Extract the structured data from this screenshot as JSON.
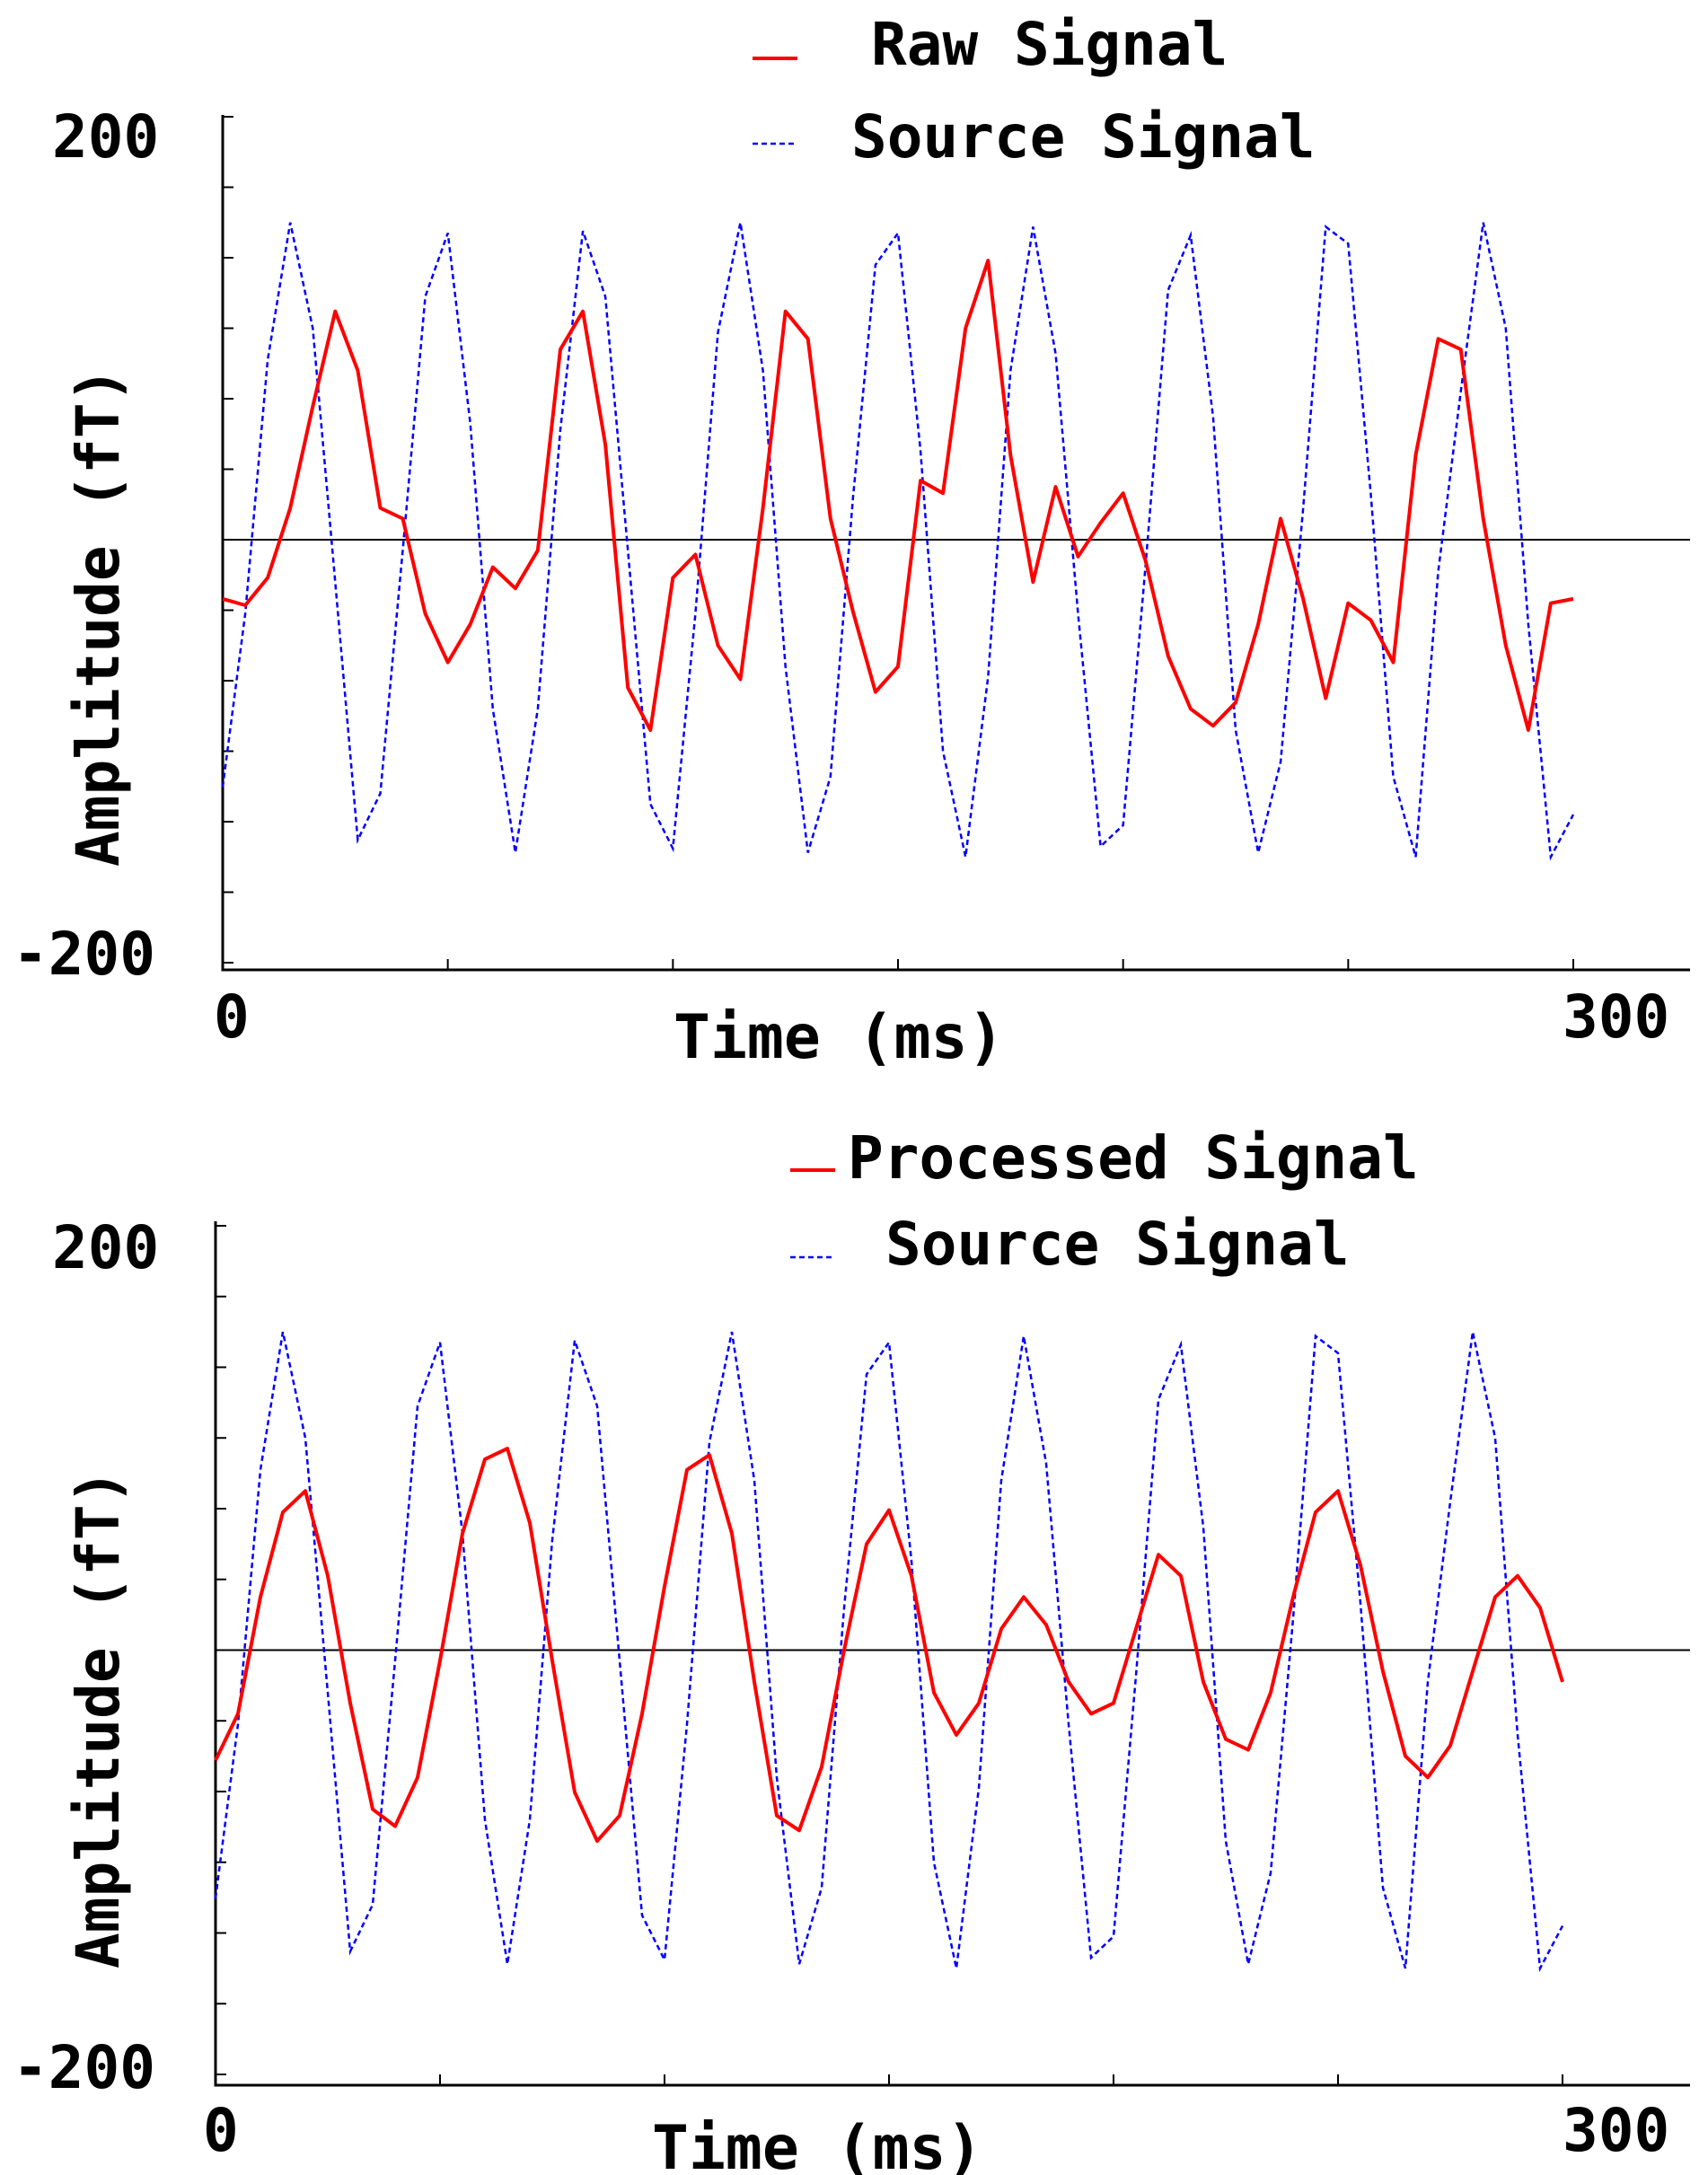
{
  "colors": {
    "raw": "#ff0000",
    "processed": "#ff0000",
    "source": "#0000ff",
    "axis": "#000000",
    "zero_line": "#000000",
    "background": "#ffffff"
  },
  "chart_data": [
    {
      "type": "line",
      "xlabel": "Time (ms)",
      "ylabel": "Amplitude (fT)",
      "xlim": [
        0,
        300
      ],
      "ylim": [
        -200,
        200
      ],
      "x_tick_labels": [
        "0",
        "300"
      ],
      "y_tick_labels": [
        "200",
        "-200"
      ],
      "zero_line": true,
      "grid": false,
      "legend_position": "top-right",
      "x": [
        0,
        5,
        10,
        15,
        20,
        25,
        30,
        35,
        40,
        45,
        50,
        55,
        60,
        65,
        70,
        75,
        80,
        85,
        90,
        95,
        100,
        105,
        110,
        115,
        120,
        125,
        130,
        135,
        140,
        145,
        150,
        155,
        160,
        165,
        170,
        175,
        180,
        185,
        190,
        195,
        200,
        205,
        210,
        215,
        220,
        225,
        230,
        235,
        240,
        245,
        250,
        255,
        260,
        265,
        270,
        275,
        280,
        285,
        290,
        295,
        300
      ],
      "series": [
        {
          "name": "Raw Signal",
          "style": "solid",
          "color": "#ff0000",
          "values": [
            -28,
            -31,
            -18,
            15,
            63,
            108,
            80,
            15,
            10,
            -35,
            -58,
            -40,
            -13,
            -23,
            -5,
            90,
            108,
            45,
            -70,
            -90,
            -18,
            -7,
            -50,
            -66,
            15,
            108,
            95,
            10,
            -34,
            -72,
            -60,
            28,
            22,
            100,
            132,
            40,
            -20,
            25,
            -8,
            8,
            22,
            -10,
            -55,
            -80,
            -88,
            -77,
            -40,
            10,
            -28,
            -75,
            -30,
            -38,
            -58,
            40,
            95,
            90,
            10,
            -50,
            -90,
            -30,
            -28
          ]
        },
        {
          "name": "Source Signal",
          "style": "dashed",
          "color": "#0000ff",
          "values": [
            -117,
            -35,
            85,
            150,
            100,
            -20,
            -142,
            -120,
            -5,
            115,
            145,
            55,
            -80,
            -148,
            -80,
            52,
            146,
            115,
            -5,
            -125,
            -146,
            -35,
            98,
            150,
            80,
            -60,
            -148,
            -112,
            20,
            130,
            145,
            42,
            -100,
            -150,
            -65,
            80,
            148,
            88,
            -35,
            -145,
            -135,
            -12,
            118,
            144,
            58,
            -90,
            -148,
            -105,
            15,
            148,
            140,
            22,
            -112,
            -150,
            -15,
            70,
            150,
            100,
            -40,
            -150,
            -130
          ]
        }
      ]
    },
    {
      "type": "line",
      "xlabel": "Time (ms)",
      "ylabel": "Amplitude (fT)",
      "xlim": [
        0,
        300
      ],
      "ylim": [
        -200,
        200
      ],
      "x_tick_labels": [
        "0",
        "300"
      ],
      "y_tick_labels": [
        "200",
        "-200"
      ],
      "zero_line": true,
      "grid": false,
      "legend_position": "top-right",
      "x": [
        0,
        5,
        10,
        15,
        20,
        25,
        30,
        35,
        40,
        45,
        50,
        55,
        60,
        65,
        70,
        75,
        80,
        85,
        90,
        95,
        100,
        105,
        110,
        115,
        120,
        125,
        130,
        135,
        140,
        145,
        150,
        155,
        160,
        165,
        170,
        175,
        180,
        185,
        190,
        195,
        200,
        205,
        210,
        215,
        220,
        225,
        230,
        235,
        240,
        245,
        250,
        255,
        260,
        265,
        270,
        275,
        280,
        285,
        290,
        295,
        300
      ],
      "series": [
        {
          "name": "Processed Signal",
          "style": "solid",
          "color": "#ff0000",
          "values": [
            -52,
            -30,
            25,
            65,
            75,
            35,
            -25,
            -75,
            -83,
            -60,
            -5,
            55,
            90,
            95,
            60,
            -5,
            -67,
            -90,
            -78,
            -30,
            30,
            85,
            92,
            55,
            -15,
            -78,
            -85,
            -55,
            0,
            50,
            66,
            35,
            -20,
            -40,
            -25,
            10,
            25,
            12,
            -15,
            -30,
            -25,
            10,
            45,
            35,
            -15,
            -42,
            -47,
            -20,
            25,
            65,
            75,
            40,
            -10,
            -50,
            -60,
            -45,
            -10,
            25,
            35,
            20,
            -15
          ]
        },
        {
          "name": "Source Signal",
          "style": "dashed",
          "color": "#0000ff",
          "values": [
            -117,
            -35,
            85,
            150,
            100,
            -20,
            -142,
            -120,
            -5,
            115,
            145,
            55,
            -80,
            -148,
            -80,
            52,
            146,
            115,
            -5,
            -125,
            -146,
            -35,
            98,
            150,
            80,
            -60,
            -148,
            -112,
            20,
            130,
            145,
            42,
            -100,
            -150,
            -65,
            80,
            148,
            88,
            -35,
            -145,
            -135,
            -12,
            118,
            144,
            58,
            -90,
            -148,
            -105,
            15,
            148,
            140,
            22,
            -112,
            -150,
            -15,
            70,
            150,
            100,
            -40,
            -150,
            -130
          ]
        }
      ]
    }
  ]
}
